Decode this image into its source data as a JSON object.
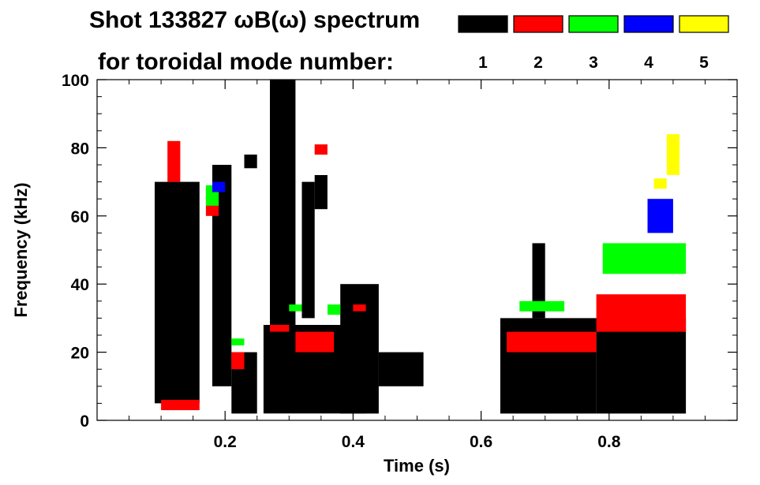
{
  "chart_data": {
    "type": "heatmap",
    "title": "Shot 133827 ωB(ω) spectrum",
    "subtitle": "for toroidal mode number:",
    "xlabel": "Time (s)",
    "ylabel": "Frequency (kHz)",
    "xlim": [
      0.0,
      1.0
    ],
    "ylim": [
      0,
      100
    ],
    "xticks": [
      0.2,
      0.4,
      0.6,
      0.8
    ],
    "xtick_labels": [
      "0.2",
      "0.4",
      "0.6",
      "0.8"
    ],
    "yticks": [
      0,
      20,
      40,
      60,
      80,
      100
    ],
    "ytick_labels": [
      "0",
      "20",
      "40",
      "60",
      "80",
      "100"
    ],
    "legend": [
      {
        "label": "1",
        "color": "#000000"
      },
      {
        "label": "2",
        "color": "#ff0000"
      },
      {
        "label": "3",
        "color": "#00ff00"
      },
      {
        "label": "4",
        "color": "#0000ff"
      },
      {
        "label": "5",
        "color": "#ffff00"
      }
    ],
    "series": [
      {
        "name": "1",
        "regions": [
          [
            0.09,
            0.16,
            5,
            70
          ],
          [
            0.18,
            0.21,
            10,
            75
          ],
          [
            0.21,
            0.25,
            2,
            20
          ],
          [
            0.23,
            0.25,
            74,
            78
          ],
          [
            0.26,
            0.42,
            2,
            28
          ],
          [
            0.27,
            0.31,
            25,
            100
          ],
          [
            0.32,
            0.34,
            30,
            70
          ],
          [
            0.34,
            0.36,
            62,
            72
          ],
          [
            0.38,
            0.44,
            2,
            40
          ],
          [
            0.44,
            0.51,
            10,
            20
          ],
          [
            0.63,
            0.78,
            2,
            30
          ],
          [
            0.68,
            0.7,
            30,
            52
          ],
          [
            0.78,
            0.92,
            2,
            30
          ]
        ]
      },
      {
        "name": "2",
        "regions": [
          [
            0.1,
            0.16,
            3,
            6
          ],
          [
            0.11,
            0.13,
            70,
            82
          ],
          [
            0.17,
            0.19,
            60,
            68
          ],
          [
            0.21,
            0.23,
            15,
            20
          ],
          [
            0.27,
            0.3,
            26,
            28
          ],
          [
            0.31,
            0.37,
            20,
            26
          ],
          [
            0.34,
            0.36,
            78,
            81
          ],
          [
            0.4,
            0.42,
            32,
            34
          ],
          [
            0.64,
            0.78,
            20,
            26
          ],
          [
            0.78,
            0.92,
            26,
            37
          ]
        ]
      },
      {
        "name": "3",
        "regions": [
          [
            0.17,
            0.19,
            63,
            69
          ],
          [
            0.21,
            0.23,
            22,
            24
          ],
          [
            0.3,
            0.32,
            32,
            34
          ],
          [
            0.36,
            0.38,
            31,
            34
          ],
          [
            0.66,
            0.73,
            32,
            35
          ],
          [
            0.79,
            0.92,
            43,
            52
          ]
        ]
      },
      {
        "name": "4",
        "regions": [
          [
            0.18,
            0.2,
            67,
            70
          ],
          [
            0.86,
            0.9,
            55,
            65
          ]
        ]
      },
      {
        "name": "5",
        "regions": [
          [
            0.87,
            0.89,
            68,
            71
          ],
          [
            0.89,
            0.91,
            72,
            84
          ]
        ]
      }
    ],
    "notes": "Spectrogram; each region is [t_start_s, t_end_s, f_low_kHz, f_high_kHz] approximating the coloured bands of each toroidal mode number."
  }
}
